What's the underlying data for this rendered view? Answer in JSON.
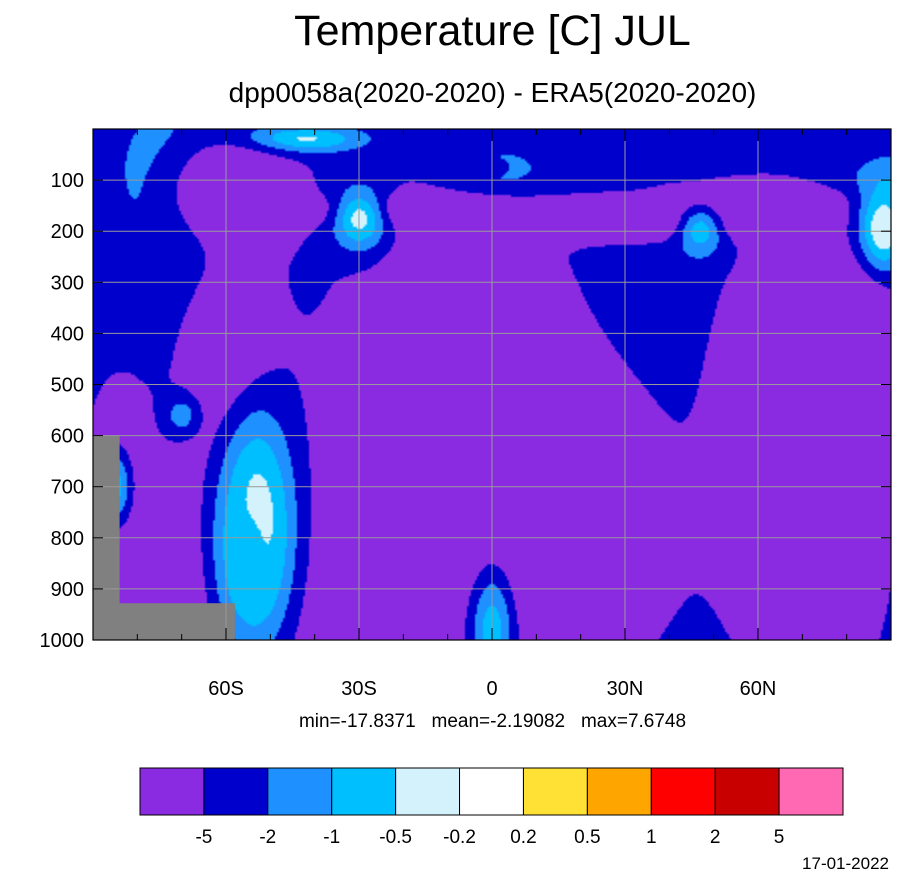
{
  "chart_data": {
    "type": "heatmap",
    "title": "Temperature [C] JUL",
    "subtitle": "dpp0058a(2020-2020) - ERA5(2020-2020)",
    "stats_text": "min=-17.8371   mean=-2.19082   max=7.6748",
    "date_text": "17-01-2022",
    "x_axis": {
      "range": [
        -90,
        90
      ],
      "ticks": [
        {
          "value": -60,
          "label": "60S"
        },
        {
          "value": -30,
          "label": "30S"
        },
        {
          "value": 0,
          "label": "0"
        },
        {
          "value": 30,
          "label": "30N"
        },
        {
          "value": 60,
          "label": "60N"
        }
      ]
    },
    "y_axis": {
      "range": [
        1000,
        0
      ],
      "ticks": [
        {
          "value": 100,
          "label": "100"
        },
        {
          "value": 200,
          "label": "200"
        },
        {
          "value": 300,
          "label": "300"
        },
        {
          "value": 400,
          "label": "400"
        },
        {
          "value": 500,
          "label": "500"
        },
        {
          "value": 600,
          "label": "600"
        },
        {
          "value": 700,
          "label": "700"
        },
        {
          "value": 800,
          "label": "800"
        },
        {
          "value": 900,
          "label": "900"
        },
        {
          "value": 1000,
          "label": "1000"
        }
      ]
    },
    "grid": true,
    "colorbar": {
      "colors": [
        "#8a2be2",
        "#0000cd",
        "#1e90ff",
        "#00bfff",
        "#d3f2fc",
        "#ffffff",
        "#ffe135",
        "#ffa500",
        "#ff0000",
        "#c80000",
        "#ff69b4"
      ],
      "labels": [
        "-5",
        "-2",
        "-1",
        "-0.5",
        "-0.2",
        "0.2",
        "0.5",
        "1",
        "2",
        "5"
      ]
    },
    "field": {
      "background_level": 1,
      "blobs": [
        {
          "lat": -70,
          "p": 110,
          "rl": 14,
          "rp": 150,
          "v": 3
        },
        {
          "lat": 0,
          "p": 80,
          "rl": 12,
          "rp": 50,
          "v": 3
        },
        {
          "lat": 90,
          "p": 130,
          "rl": 16,
          "rp": 70,
          "v": 3
        },
        {
          "lat": 58,
          "p": 150,
          "rl": 26,
          "rp": 45,
          "v": -1
        },
        {
          "lat": 92,
          "p": 730,
          "rl": 9,
          "rp": 250,
          "v": 3
        },
        {
          "lat": -58,
          "p": 470,
          "rl": 10,
          "rp": 200,
          "v": -1
        },
        {
          "lat": -55,
          "p": 900,
          "rl": 22,
          "rp": 380,
          "v": -1
        },
        {
          "lat": -8,
          "p": 600,
          "rl": 26,
          "rp": 480,
          "v": -1
        },
        {
          "lat": 18,
          "p": 780,
          "rl": 22,
          "rp": 260,
          "v": -1
        },
        {
          "lat": 30,
          "p": 180,
          "rl": 34,
          "rp": 35,
          "v": -1
        },
        {
          "lat": -22,
          "p": 160,
          "rl": 22,
          "rp": 30,
          "v": -1
        },
        {
          "lat": 64,
          "p": 620,
          "rl": 14,
          "rp": 380,
          "v": -1
        },
        {
          "lat": 80,
          "p": 560,
          "rl": 12,
          "rp": 340,
          "v": -1
        },
        {
          "lat": -84,
          "p": 700,
          "rl": 7,
          "rp": 180,
          "v": -1
        },
        {
          "lat": -53,
          "p": 780,
          "rl": 9,
          "rp": 240,
          "v": 4.5
        },
        {
          "lat": -55,
          "p": 840,
          "rl": 7,
          "rp": 150,
          "v": 3.2
        },
        {
          "lat": -85,
          "p": 700,
          "rl": 4,
          "rp": 80,
          "v": 3
        },
        {
          "lat": -70,
          "p": 560,
          "rl": 4,
          "rp": 40,
          "v": 2
        },
        {
          "lat": -30,
          "p": 175,
          "rl": 6,
          "rp": 60,
          "v": 4
        },
        {
          "lat": -45,
          "p": 20,
          "rl": 14,
          "rp": 25,
          "v": 4.5
        },
        {
          "lat": 47,
          "p": 200,
          "rl": 5,
          "rp": 50,
          "v": 3
        },
        {
          "lat": 88,
          "p": 200,
          "rl": 5,
          "rp": 80,
          "v": 5
        },
        {
          "lat": 0,
          "p": 980,
          "rl": 5,
          "rp": 120,
          "v": 3
        },
        {
          "lat": 0,
          "p": 75,
          "rl": 6,
          "rp": 25,
          "v": 1.3
        },
        {
          "lat": 31,
          "p": 90,
          "rl": 5,
          "rp": 20,
          "v": 1.3
        },
        {
          "lat": 85,
          "p": 650,
          "rl": 8,
          "rp": 300,
          "v": -1.5
        },
        {
          "lat": -60,
          "p": 120,
          "rl": 16,
          "rp": 120,
          "v": -1
        },
        {
          "lat": 65,
          "p": 200,
          "rl": 5,
          "rp": 20,
          "v": -1
        },
        {
          "lat": 68,
          "p": 940,
          "rl": 6,
          "rp": 120,
          "v": -1
        }
      ]
    },
    "missing_region_color": "#808080"
  }
}
